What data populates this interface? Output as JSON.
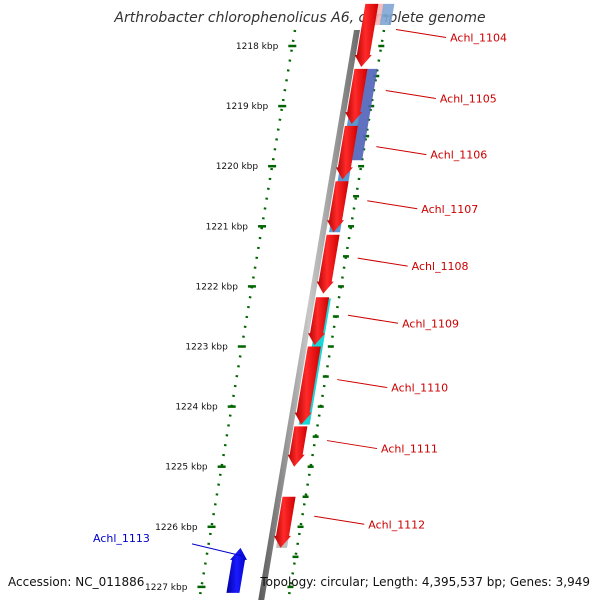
{
  "title": "Arthrobacter chlorophenolicus A6, complete genome",
  "footer": {
    "accession": "Accession: NC_011886",
    "summary": "Topology: circular; Length: 4,395,537 bp; Genes: 3,949"
  },
  "colors": {
    "forward_cds": "#ff0000",
    "reverse_cds": "#0000ff",
    "forward_label": "#cc0000",
    "reverse_label": "#0000cc",
    "tick": "#006400",
    "backbone": "#808080"
  },
  "scale": {
    "unit": "kbp",
    "ticks": [
      {
        "label": "1218 kbp",
        "pos": 1218
      },
      {
        "label": "1219 kbp",
        "pos": 1219
      },
      {
        "label": "1220 kbp",
        "pos": 1220
      },
      {
        "label": "1221 kbp",
        "pos": 1221
      },
      {
        "label": "1222 kbp",
        "pos": 1222
      },
      {
        "label": "1223 kbp",
        "pos": 1223
      },
      {
        "label": "1224 kbp",
        "pos": 1224
      },
      {
        "label": "1225 kbp",
        "pos": 1225
      },
      {
        "label": "1226 kbp",
        "pos": 1226
      },
      {
        "label": "1227 kbp",
        "pos": 1227
      }
    ]
  },
  "genes": [
    {
      "label": "Achl_1104",
      "strand": "+",
      "start": 1217.3,
      "end": 1218.35
    },
    {
      "label": "Achl_1105",
      "strand": "+",
      "start": 1218.38,
      "end": 1219.3
    },
    {
      "label": "Achl_1106",
      "strand": "+",
      "start": 1219.33,
      "end": 1220.22
    },
    {
      "label": "Achl_1107",
      "strand": "+",
      "start": 1220.25,
      "end": 1221.1
    },
    {
      "label": "Achl_1108",
      "strand": "+",
      "start": 1221.14,
      "end": 1222.12
    },
    {
      "label": "Achl_1109",
      "strand": "+",
      "start": 1222.18,
      "end": 1222.98
    },
    {
      "label": "Achl_1110",
      "strand": "+",
      "start": 1223.0,
      "end": 1224.3
    },
    {
      "label": "Achl_1111",
      "strand": "+",
      "start": 1224.33,
      "end": 1225.0
    },
    {
      "label": "Achl_1112",
      "strand": "+",
      "start": 1225.5,
      "end": 1226.35
    },
    {
      "label": "Achl_1113",
      "strand": "-",
      "start": 1226.35,
      "end": 1227.1
    }
  ],
  "features": [
    {
      "color": "#f5b5b5",
      "start": 1217.3,
      "end": 1217.65
    },
    {
      "color": "#7fa6d6",
      "start": 1217.3,
      "end": 1217.65
    },
    {
      "color": "#4f63b8",
      "start": 1218.38,
      "end": 1219.9
    },
    {
      "color": "#4a8fcf",
      "start": 1219.1,
      "end": 1221.1
    },
    {
      "color": "#00d2d2",
      "start": 1222.2,
      "end": 1224.3
    },
    {
      "color": "#b8b8b8",
      "start": 1225.55,
      "end": 1226.35
    }
  ]
}
